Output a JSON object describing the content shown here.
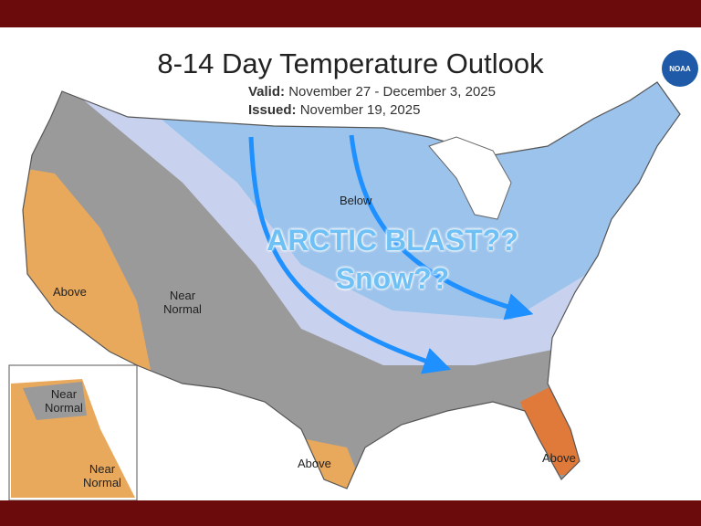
{
  "header": {
    "title": "8-14 Day Temperature Outlook",
    "valid_label": "Valid:",
    "valid": "November 27 - December 3, 2025",
    "issued_label": "Issued:",
    "issued": "November 19, 2025"
  },
  "logo": "NOAA",
  "overlay": {
    "line1": "ARCTIC BLAST??",
    "line2": "Snow??"
  },
  "regions": [
    {
      "label": "Below"
    },
    {
      "label": "Above"
    },
    {
      "label": "Near Normal"
    },
    {
      "label": "Above"
    },
    {
      "label": "Above"
    }
  ],
  "alaska": [
    {
      "label": "Near Normal"
    },
    {
      "label": "Near Normal"
    }
  ]
}
